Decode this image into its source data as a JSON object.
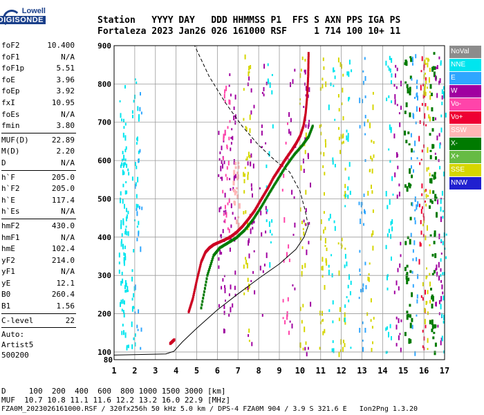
{
  "logo": {
    "line1": "Lowell",
    "line2": "DIGISONDE"
  },
  "header": {
    "line1": "Station   YYYY DAY   DDD HHMMSS P1  FFS S AXN PPS IGA PS",
    "line2": "Fortaleza 2023 Jan26 026 161000 RSF     1 714 100 10+ 11"
  },
  "params": {
    "group1": [
      {
        "k": "foF2",
        "v": "10.400"
      },
      {
        "k": "foF1",
        "v": "N/A"
      },
      {
        "k": "foF1p",
        "v": "5.51"
      },
      {
        "k": "foE",
        "v": "3.96"
      },
      {
        "k": "foEp",
        "v": "3.92"
      },
      {
        "k": "fxI",
        "v": "10.95"
      },
      {
        "k": "foEs",
        "v": "N/A"
      },
      {
        "k": "fmin",
        "v": "3.80"
      }
    ],
    "group2": [
      {
        "k": "MUF(D)",
        "v": "22.89"
      },
      {
        "k": "M(D)",
        "v": "2.20"
      },
      {
        "k": "D",
        "v": "N/A"
      }
    ],
    "group3": [
      {
        "k": "h`F",
        "v": "205.0"
      },
      {
        "k": "h`F2",
        "v": "205.0"
      },
      {
        "k": "h`E",
        "v": "117.4"
      },
      {
        "k": "h`Es",
        "v": "N/A"
      }
    ],
    "group4": [
      {
        "k": "hmF2",
        "v": "430.0"
      },
      {
        "k": "hmF1",
        "v": "N/A"
      },
      {
        "k": "hmE",
        "v": "102.4"
      },
      {
        "k": "yF2",
        "v": "214.0"
      },
      {
        "k": "yF1",
        "v": "N/A"
      },
      {
        "k": "yE",
        "v": "12.1"
      },
      {
        "k": "B0",
        "v": "260.4"
      },
      {
        "k": "B1",
        "v": "1.56"
      }
    ],
    "group5": [
      {
        "k": "C-level",
        "v": "22"
      }
    ],
    "auto": [
      "Auto:",
      "Artist5",
      "500200"
    ]
  },
  "legend": [
    {
      "label": "NoVal",
      "color": "#8c8c8c"
    },
    {
      "label": "NNE",
      "color": "#00e5ee"
    },
    {
      "label": "E",
      "color": "#2fa6ff"
    },
    {
      "label": "W",
      "color": "#a000a0"
    },
    {
      "label": "Vo-",
      "color": "#ff44aa"
    },
    {
      "label": "Vo+",
      "color": "#ee0033"
    },
    {
      "label": "SSW",
      "color": "#ffb6b6"
    },
    {
      "label": "X-",
      "color": "#007a00"
    },
    {
      "label": "X+",
      "color": "#66bb44"
    },
    {
      "label": "SSE",
      "color": "#d6d600"
    },
    {
      "label": "NNW",
      "color": "#2020d0"
    }
  ],
  "footer": {
    "line1": "D     100  200  400  600  800 1000 1500 3000 [km]",
    "line2": "MUF  10.7 10.8 11.1 11.6 12.2 13.2 16.0 22.9 [MHz]",
    "line3": "FZA0M_2023026161000.RSF / 320fx256h 50 kHz 5.0 km / DPS-4 FZA0M 904 / 3.9 S 321.6 E   Ion2Png 1.3.20"
  },
  "chart_data": {
    "type": "scatter",
    "title": "",
    "xlabel": "",
    "ylabel": "",
    "xlim": [
      1,
      17
    ],
    "ylim": [
      80,
      900
    ],
    "xticks": [
      1,
      2,
      3,
      4,
      5,
      6,
      7,
      8,
      9,
      10,
      11,
      12,
      13,
      14,
      15,
      16,
      17
    ],
    "yticks": [
      100,
      200,
      300,
      400,
      500,
      600,
      700,
      800,
      900
    ],
    "grid": true,
    "series": [
      {
        "name": "O trace",
        "color": "#cc0022",
        "x": [
          4.6,
          4.8,
          5.0,
          5.2,
          5.4,
          5.6,
          5.8,
          6.0,
          6.3,
          6.6,
          6.9,
          7.2,
          7.5,
          7.8,
          8.1,
          8.4,
          8.7,
          9.0,
          9.3,
          9.6,
          9.8,
          10.0,
          10.15,
          10.25,
          10.32,
          10.38,
          10.4
        ],
        "y": [
          205,
          240,
          290,
          335,
          360,
          372,
          380,
          385,
          392,
          400,
          412,
          428,
          448,
          470,
          498,
          525,
          555,
          580,
          605,
          628,
          645,
          665,
          690,
          720,
          760,
          820,
          880
        ]
      },
      {
        "name": "X trace",
        "color": "#007a00",
        "x": [
          5.2,
          5.5,
          5.8,
          6.1,
          6.5,
          6.9,
          7.3,
          7.7,
          8.1,
          8.5,
          8.9,
          9.3,
          9.7,
          10.1,
          10.4,
          10.6
        ],
        "y": [
          215,
          300,
          352,
          372,
          385,
          398,
          418,
          445,
          478,
          515,
          550,
          585,
          615,
          640,
          662,
          690
        ]
      },
      {
        "name": "E trace",
        "color": "#cc0022",
        "x": [
          3.7,
          3.8,
          3.9
        ],
        "y": [
          122,
          127,
          132
        ]
      }
    ],
    "lines": [
      {
        "name": "Profile",
        "style": "solid",
        "x": [
          1.0,
          3.5,
          3.9,
          4.3,
          5.0,
          6.0,
          7.0,
          8.0,
          9.0,
          9.8,
          10.2,
          10.4
        ],
        "y": [
          92,
          95,
          102,
          126,
          162,
          210,
          252,
          292,
          330,
          368,
          400,
          430
        ]
      },
      {
        "name": "Profile upper",
        "style": "dashed",
        "x": [
          10.4,
          10.25,
          10.0,
          9.5,
          8.8,
          8.0,
          7.2,
          6.4,
          5.6,
          4.9,
          4.5
        ],
        "y": [
          430,
          470,
          520,
          570,
          600,
          640,
          690,
          750,
          820,
          900,
          900
        ]
      }
    ]
  }
}
